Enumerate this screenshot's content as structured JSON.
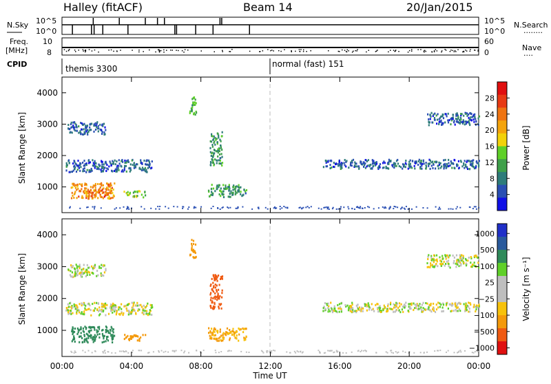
{
  "header": {
    "station": "Halley (fitACF)",
    "beam": "Beam 14",
    "date": "20/Jan/2015"
  },
  "strip_labels": {
    "nsky": "N.Sky",
    "nsearch": "N.Search",
    "nsearch_dots": "........",
    "freq": "Freq.",
    "freq_unit": "[MHz]",
    "nave": "Nave",
    "nave_dots": "....",
    "cpid": "CPID",
    "nsky_top": "10^5",
    "nsky_bot": "10^0",
    "nsearch_top": "10^5",
    "nsearch_bot": "10^0",
    "freq_top": "10",
    "freq_bot": "8",
    "nave_top": "60",
    "nave_bot": "0"
  },
  "cpid_segments": [
    {
      "label": "themis 3300",
      "start_hour": 0
    },
    {
      "label": "normal (fast) 151",
      "start_hour": 12
    }
  ],
  "panels": {
    "yaxis_label": "Slant Range [km]",
    "xaxis_label": "Time UT",
    "power_cbar_label": "Power [dB]",
    "velocity_cbar_label": "Velocity [m s⁻¹]"
  },
  "chart_data": [
    {
      "type": "heatmap",
      "title": "Power",
      "x_range_hours": [
        0,
        24
      ],
      "x_ticks": [
        "00:00",
        "04:00",
        "08:00",
        "12:00",
        "16:00",
        "20:00",
        "00:00"
      ],
      "y_range_km": [
        180,
        4500
      ],
      "y_ticks": [
        1000,
        2000,
        3000,
        4000
      ],
      "colorbar": {
        "label": "Power [dB]",
        "ticks": [
          "4",
          "8",
          "12",
          "16",
          "20",
          "24",
          "28"
        ],
        "colors": [
          "#1010e6",
          "#2a4fb3",
          "#2e7c7a",
          "#3fa04a",
          "#5fd028",
          "#f2d20a",
          "#f4a40c",
          "#ef7412",
          "#e83a14",
          "#e00f0f"
        ]
      },
      "scatter_regions": [
        {
          "hours": [
            0.2,
            5.2
          ],
          "km": [
            1500,
            1900
          ],
          "value_db": 6
        },
        {
          "hours": [
            0.3,
            2.5
          ],
          "km": [
            2700,
            3100
          ],
          "value_db": 6
        },
        {
          "hours": [
            0.5,
            3.0
          ],
          "km": [
            650,
            1150
          ],
          "value_db": 22
        },
        {
          "hours": [
            1.5,
            2.8
          ],
          "km": [
            700,
            950
          ],
          "value_db": 25
        },
        {
          "hours": [
            3.5,
            4.8
          ],
          "km": [
            700,
            900
          ],
          "value_db": 14
        },
        {
          "hours": [
            8.4,
            10.6
          ],
          "km": [
            700,
            1100
          ],
          "value_db": 10
        },
        {
          "hours": [
            8.5,
            9.2
          ],
          "km": [
            1700,
            2800
          ],
          "value_db": 10
        },
        {
          "hours": [
            7.3,
            7.7
          ],
          "km": [
            3300,
            3900
          ],
          "value_db": 12
        },
        {
          "hours": [
            15.0,
            24.0
          ],
          "km": [
            1600,
            1900
          ],
          "value_db": 6
        },
        {
          "hours": [
            21.0,
            24.0
          ],
          "km": [
            3000,
            3400
          ],
          "value_db": 6
        }
      ]
    },
    {
      "type": "heatmap",
      "title": "Velocity",
      "x_range_hours": [
        0,
        24
      ],
      "x_ticks": [
        "00:00",
        "04:00",
        "08:00",
        "12:00",
        "16:00",
        "20:00",
        "00:00"
      ],
      "y_range_km": [
        180,
        4500
      ],
      "y_ticks": [
        1000,
        2000,
        3000,
        4000
      ],
      "colorbar": {
        "label": "Velocity [m s⁻¹]",
        "ticks": [
          "1000",
          "500",
          "100",
          "25",
          "−25",
          "−100",
          "−500",
          "−1000"
        ],
        "colors": [
          "#2030c8",
          "#2a5a9c",
          "#2f8a5a",
          "#5fd028",
          "#bebebe",
          "#bebebe",
          "#f7c20c",
          "#f49a0c",
          "#ef5a12",
          "#e01010"
        ]
      },
      "scatter_regions": [
        {
          "hours": [
            0.2,
            5.2
          ],
          "km": [
            1500,
            1900
          ],
          "value_ms": 0
        },
        {
          "hours": [
            0.3,
            2.5
          ],
          "km": [
            2700,
            3100
          ],
          "value_ms": 0
        },
        {
          "hours": [
            0.5,
            3.0
          ],
          "km": [
            650,
            1150
          ],
          "value_ms": 200
        },
        {
          "hours": [
            3.5,
            4.8
          ],
          "km": [
            700,
            900
          ],
          "value_ms": -300
        },
        {
          "hours": [
            8.4,
            10.6
          ],
          "km": [
            700,
            1100
          ],
          "value_ms": -120
        },
        {
          "hours": [
            8.5,
            9.2
          ],
          "km": [
            1700,
            2800
          ],
          "value_ms": -800
        },
        {
          "hours": [
            7.3,
            7.7
          ],
          "km": [
            3300,
            3900
          ],
          "value_ms": -400
        },
        {
          "hours": [
            15.0,
            24.0
          ],
          "km": [
            1600,
            1900
          ],
          "value_ms": 0
        },
        {
          "hours": [
            21.0,
            24.0
          ],
          "km": [
            3000,
            3400
          ],
          "value_ms": 0
        }
      ]
    }
  ]
}
